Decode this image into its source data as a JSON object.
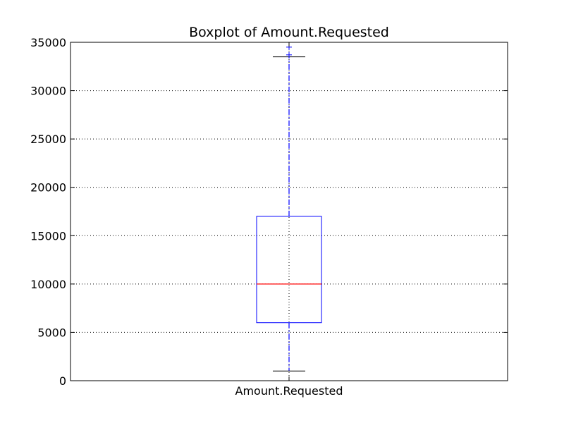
{
  "chart_data": {
    "type": "boxplot",
    "title": "Boxplot of Amount.Requested",
    "xlabel": "",
    "ylabel": "",
    "categories": [
      "Amount.Requested"
    ],
    "ylim": [
      0,
      35000
    ],
    "yticks": [
      0,
      5000,
      10000,
      15000,
      20000,
      25000,
      30000,
      35000
    ],
    "ytick_labels": [
      "0",
      "5000",
      "10000",
      "15000",
      "20000",
      "25000",
      "30000",
      "35000"
    ],
    "boxes": [
      {
        "category": "Amount.Requested",
        "whisker_low": 1000,
        "q1": 6000,
        "median": 10000,
        "q3": 17000,
        "whisker_high": 33500,
        "fliers": [
          33700,
          34500
        ]
      }
    ],
    "grid": true,
    "colors": {
      "box": "#0000ff",
      "median": "#ff0000",
      "whisker": "#0000ff",
      "cap": "#000000",
      "flier": "#0000ff",
      "grid": "#000000",
      "frame": "#000000"
    }
  }
}
